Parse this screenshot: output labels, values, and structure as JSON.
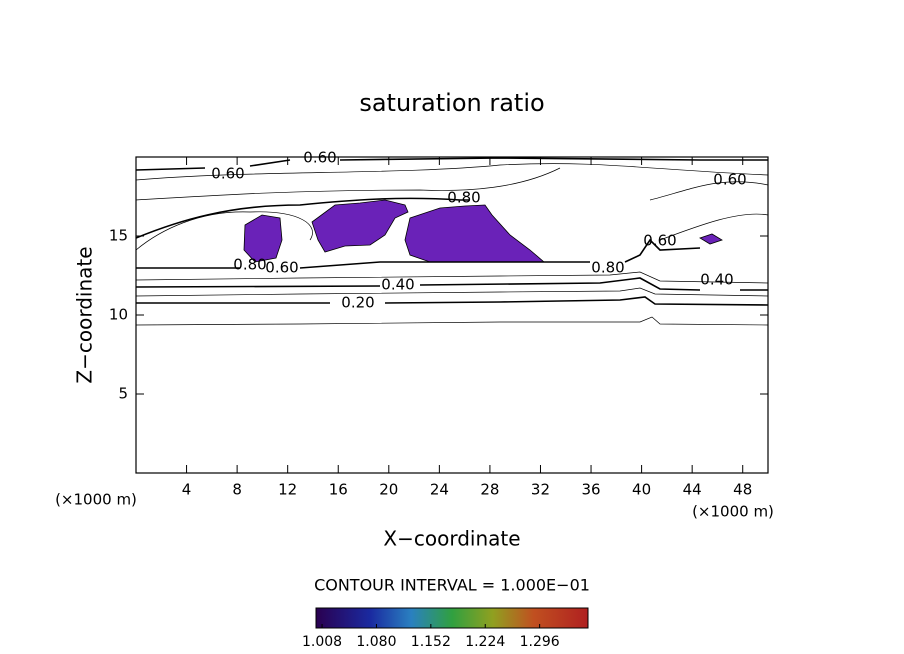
{
  "chart_data": {
    "type": "contour",
    "title": "saturation ratio",
    "x_label": "X−coordinate",
    "y_label": "Z−coordinate",
    "x_unit": "(×1000 m)",
    "y_unit": "(×1000 m)",
    "xlim": [
      0,
      50
    ],
    "ylim": [
      0,
      20
    ],
    "xticks": [
      4,
      8,
      12,
      16,
      20,
      24,
      28,
      32,
      36,
      40,
      44,
      48
    ],
    "yticks": [
      5,
      10,
      15
    ],
    "contour_interval_text": "CONTOUR INTERVAL = 1.000E−01",
    "contour_labels": [
      {
        "value": 0.6,
        "label": "0.60"
      },
      {
        "value": 0.6,
        "label": "0.60"
      },
      {
        "value": 0.8,
        "label": "0.80"
      },
      {
        "value": 0.6,
        "label": "0.60"
      },
      {
        "value": 0.8,
        "label": "0.80"
      },
      {
        "value": 0.6,
        "label": "0.60"
      },
      {
        "value": 0.8,
        "label": "0.80"
      },
      {
        "value": 0.6,
        "label": "0.60"
      },
      {
        "value": 0.4,
        "label": "0.40"
      },
      {
        "value": 0.4,
        "label": "0.40"
      },
      {
        "value": 0.2,
        "label": "0.20"
      }
    ],
    "fill_color": "#6a22b8",
    "colorbar_lim": [
      1.0,
      1.36
    ],
    "colorbar_ticks": [
      {
        "value": 1.008,
        "label": "1.008"
      },
      {
        "value": 1.08,
        "label": "1.080"
      },
      {
        "value": 1.152,
        "label": "1.152"
      },
      {
        "value": 1.224,
        "label": "1.224"
      },
      {
        "value": 1.296,
        "label": "1.296"
      }
    ]
  }
}
